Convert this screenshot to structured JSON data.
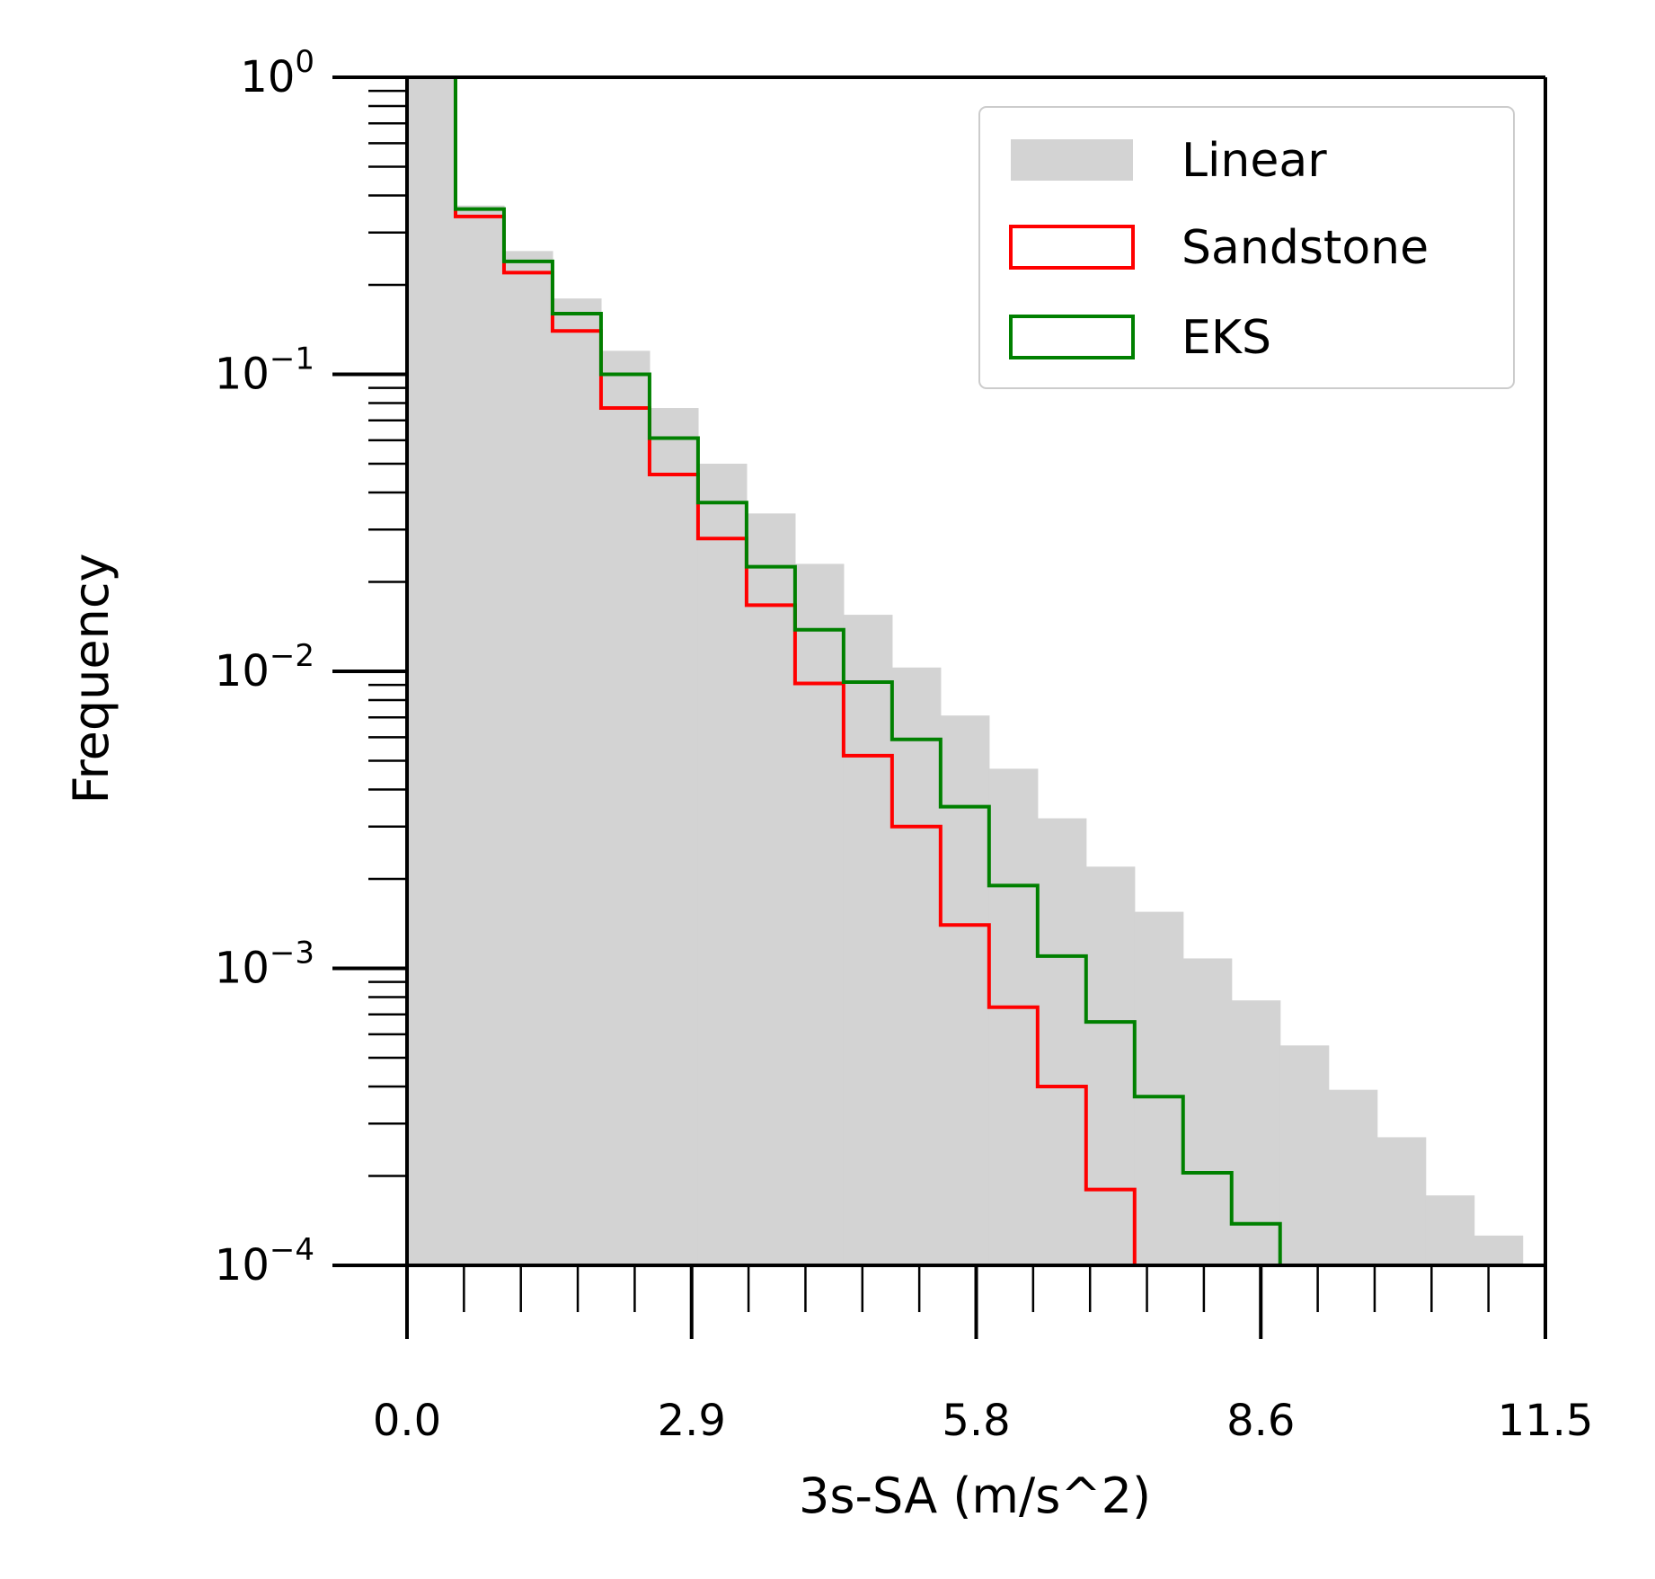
{
  "chart_data": {
    "type": "histogram",
    "title": "",
    "xlabel": "3s-SA (m/s^2)",
    "ylabel": "Frequency",
    "xlim": [
      0.0,
      11.5
    ],
    "ylim": [
      0.0001,
      1
    ],
    "yscale": "log",
    "xticks": [
      "0.0",
      "2.9",
      "5.8",
      "8.6",
      "11.5"
    ],
    "xtick_values": [
      0.0,
      2.875,
      5.75,
      8.625,
      11.5
    ],
    "yticks": [
      {
        "base": "10",
        "exp": "0",
        "value": 1
      },
      {
        "base": "10",
        "exp": "−1",
        "value": 0.1
      },
      {
        "base": "10",
        "exp": "−2",
        "value": 0.01
      },
      {
        "base": "10",
        "exp": "−3",
        "value": 0.001
      },
      {
        "base": "10",
        "exp": "−4",
        "value": 0.0001
      }
    ],
    "bin_edges": [
      0.0,
      0.49,
      0.98,
      1.47,
      1.96,
      2.45,
      2.94,
      3.43,
      3.92,
      4.41,
      4.9,
      5.39,
      5.88,
      6.37,
      6.86,
      7.35,
      7.84,
      8.33,
      8.82,
      9.31,
      9.8,
      10.29,
      10.78,
      11.27
    ],
    "legend_position": "upper right",
    "series": [
      {
        "name": "Linear",
        "style": "filled",
        "color": "#d3d3d3",
        "values": [
          1.0,
          0.37,
          0.26,
          0.18,
          0.12,
          0.077,
          0.05,
          0.034,
          0.023,
          0.0155,
          0.0103,
          0.0071,
          0.0047,
          0.0032,
          0.0022,
          0.00155,
          0.00108,
          0.00078,
          0.00055,
          0.00039,
          0.00027,
          0.000172,
          0.000126
        ]
      },
      {
        "name": "Sandstone",
        "style": "step",
        "color": "#ff0000",
        "values": [
          1.0,
          0.34,
          0.22,
          0.14,
          0.077,
          0.046,
          0.028,
          0.0167,
          0.0091,
          0.0052,
          0.003,
          0.0014,
          0.00074,
          0.0004,
          0.00018
        ]
      },
      {
        "name": "EKS",
        "style": "step",
        "color": "#008000",
        "values": [
          1.0,
          0.36,
          0.24,
          0.16,
          0.1,
          0.061,
          0.037,
          0.0225,
          0.0138,
          0.0092,
          0.0059,
          0.0035,
          0.0019,
          0.0011,
          0.00066,
          0.00037,
          0.000205,
          0.000138
        ]
      }
    ]
  }
}
